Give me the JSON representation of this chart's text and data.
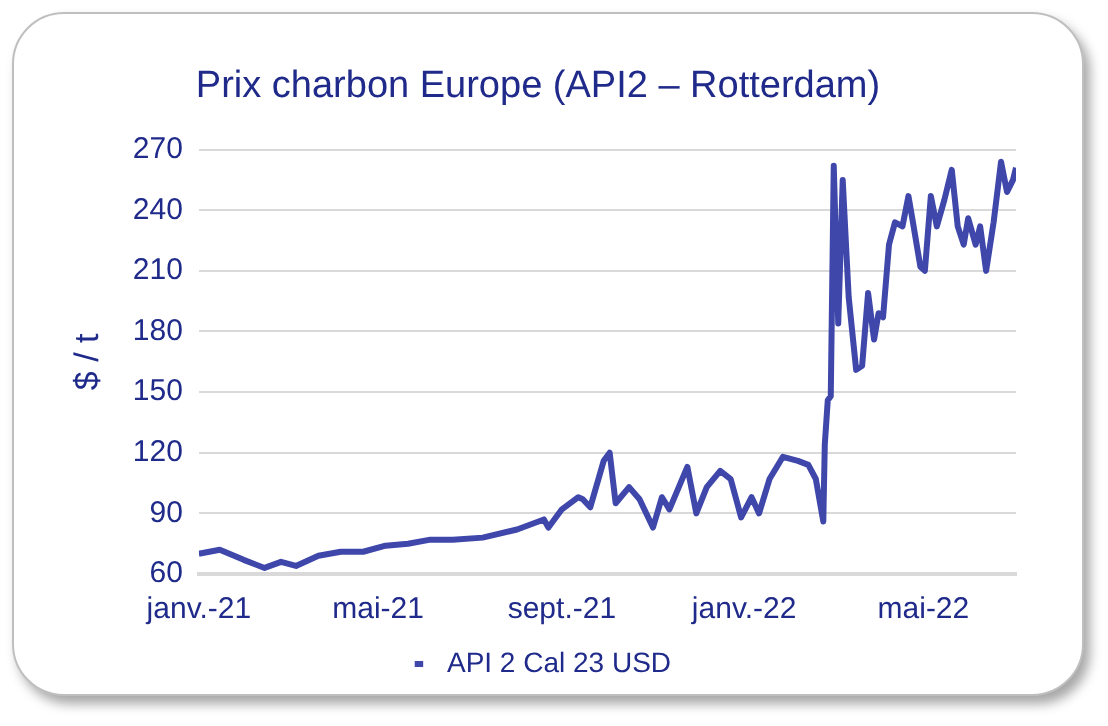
{
  "chart_data": {
    "type": "line",
    "title": "Prix charbon Europe (API2 – Rotterdam)",
    "ylabel": "$ / t",
    "x": [
      "2021-01-01",
      "2021-01-15",
      "2021-01-31",
      "2021-02-14",
      "2021-02-25",
      "2021-03-07",
      "2021-03-22",
      "2021-04-06",
      "2021-04-21",
      "2021-05-06",
      "2021-05-21",
      "2021-06-05",
      "2021-06-20",
      "2021-07-10",
      "2021-08-02",
      "2021-08-20",
      "2021-08-23",
      "2021-09-01",
      "2021-09-12",
      "2021-09-15",
      "2021-09-20",
      "2021-09-29",
      "2021-10-03",
      "2021-10-07",
      "2021-10-16",
      "2021-10-23",
      "2021-11-01",
      "2021-11-07",
      "2021-11-12",
      "2021-11-24",
      "2021-11-30",
      "2021-12-07",
      "2021-12-16",
      "2021-12-23",
      "2021-12-30",
      "2022-01-06",
      "2022-01-11",
      "2022-01-18",
      "2022-01-27",
      "2022-02-06",
      "2022-02-13",
      "2022-02-18",
      "2022-02-23",
      "2022-02-24",
      "2022-02-26",
      "2022-02-28",
      "2022-03-02",
      "2022-03-05",
      "2022-03-08",
      "2022-03-12",
      "2022-03-17",
      "2022-03-21",
      "2022-03-25",
      "2022-03-29",
      "2022-04-01",
      "2022-04-04",
      "2022-04-08",
      "2022-04-12",
      "2022-04-17",
      "2022-04-21",
      "2022-04-24",
      "2022-04-29",
      "2022-05-02",
      "2022-05-06",
      "2022-05-10",
      "2022-05-15",
      "2022-05-20",
      "2022-05-24",
      "2022-05-28",
      "2022-05-31",
      "2022-06-05",
      "2022-06-08",
      "2022-06-12",
      "2022-06-17",
      "2022-06-22",
      "2022-06-26",
      "2022-06-30",
      "2022-07-02"
    ],
    "series": [
      {
        "name": "API 2 Cal 23 USD",
        "color": "#3f48aa",
        "values": [
          70,
          72,
          67,
          63,
          66,
          64,
          69,
          71,
          71,
          74,
          75,
          77,
          77,
          78,
          82,
          87,
          83,
          92,
          98,
          97,
          93,
          116,
          120,
          95,
          103,
          97,
          83,
          98,
          92,
          113,
          90,
          103,
          111,
          107,
          88,
          98,
          90,
          107,
          118,
          116,
          114,
          107,
          86,
          124,
          146,
          148,
          262,
          184,
          255,
          197,
          161,
          163,
          199,
          176,
          189,
          187,
          223,
          234,
          232,
          247,
          234,
          212,
          210,
          247,
          232,
          245,
          260,
          232,
          223,
          236,
          223,
          232,
          210,
          234,
          264,
          249,
          255,
          261
        ]
      }
    ],
    "xlim": [
      "2021-01-01",
      "2022-07-02"
    ],
    "xticks": [
      {
        "value": "2021-01-01",
        "label": "janv.-21"
      },
      {
        "value": "2021-05-01",
        "label": "mai-21"
      },
      {
        "value": "2021-09-01",
        "label": "sept.-21"
      },
      {
        "value": "2022-01-01",
        "label": "janv.-22"
      },
      {
        "value": "2022-05-01",
        "label": "mai-22"
      }
    ],
    "ylim": [
      60,
      270
    ],
    "yticks": [
      60,
      90,
      120,
      150,
      180,
      210,
      240,
      270
    ],
    "grid": "y",
    "legend": "bottom",
    "marker": "none",
    "line_style": "solid"
  }
}
